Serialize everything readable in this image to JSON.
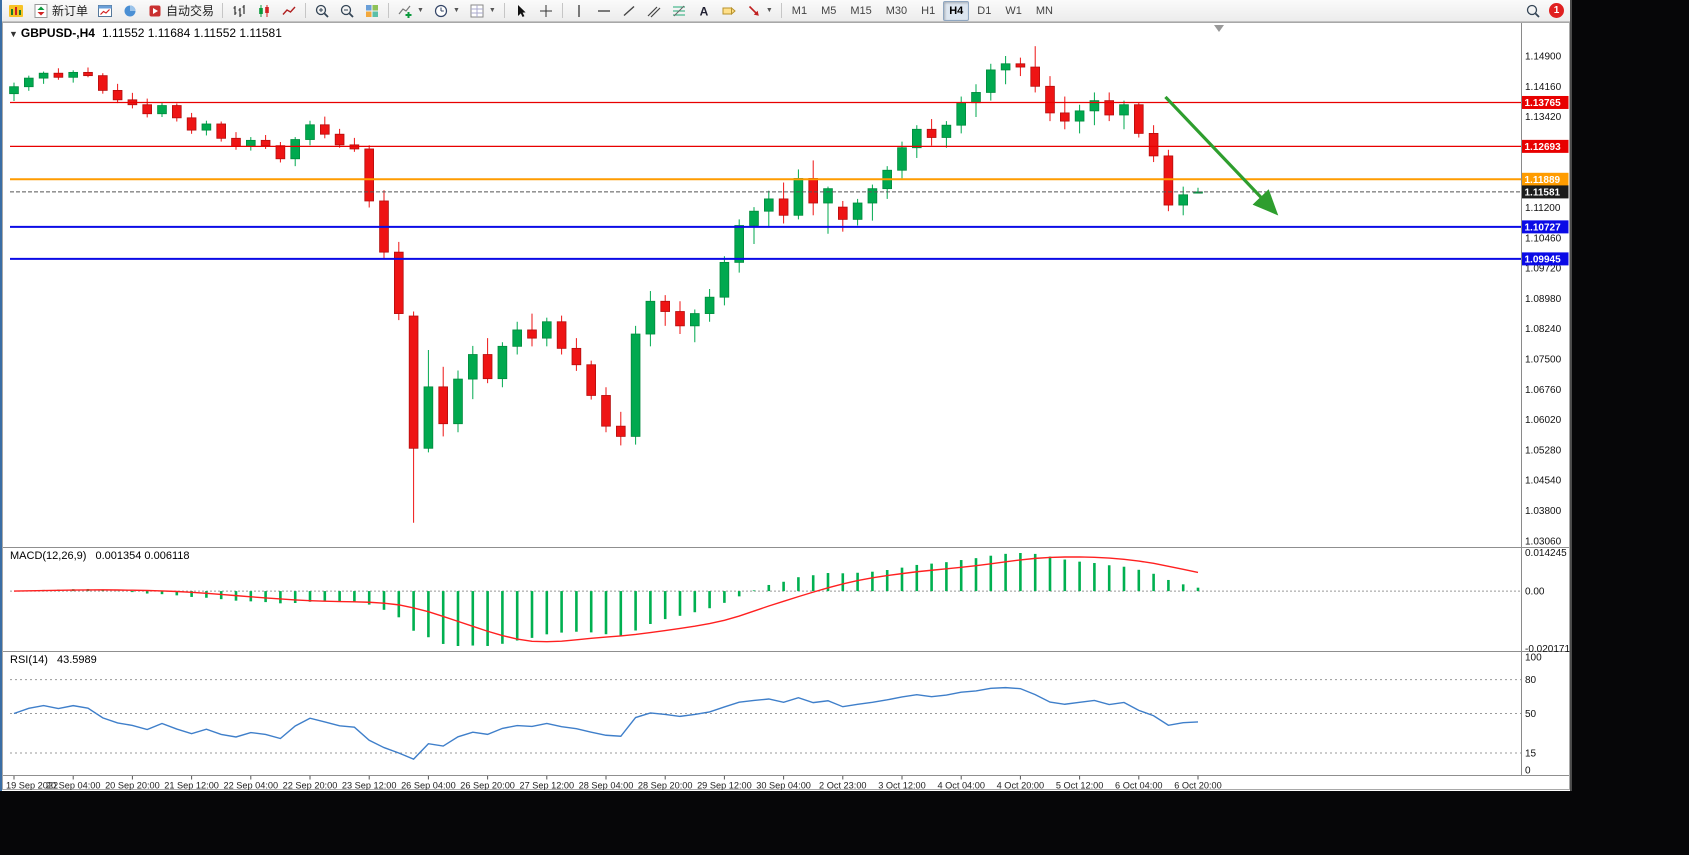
{
  "toolbar": {
    "new_order_label": "新订单",
    "autotrading_label": "自动交易",
    "notification_badge": "1",
    "icon_names": [
      "app-logo-icon",
      "new-order-icon",
      "new-chart-icon",
      "profiles-icon",
      "autotrading-icon",
      "bars-chart-icon",
      "candles-chart-icon",
      "line-chart-icon",
      "zoom-in-icon",
      "zoom-out-icon",
      "tile-windows-icon",
      "indicators-add-icon",
      "periods-clock-icon",
      "templates-icon",
      "cursor-icon",
      "crosshair-icon",
      "vertical-line-icon",
      "horizontal-line-icon",
      "trend-line-icon",
      "channel-icon",
      "fibonacci-icon",
      "text-icon",
      "text-label-icon",
      "arrows-icon",
      "search-icon"
    ],
    "timeframes": [
      {
        "label": "M1"
      },
      {
        "label": "M5"
      },
      {
        "label": "M15"
      },
      {
        "label": "M30"
      },
      {
        "label": "H1"
      },
      {
        "label": "H4",
        "active": true
      },
      {
        "label": "D1"
      },
      {
        "label": "W1"
      },
      {
        "label": "MN"
      }
    ]
  },
  "chart": {
    "one_click_glyph": "▼",
    "symbol_label": "GBPUSD-,H4",
    "ohlc_label": "1.11552 1.11684 1.11552 1.11581"
  },
  "chart_data": {
    "type": "candlestick",
    "symbol": "GBPUSD-",
    "period": "H4",
    "current_ohlc": {
      "open": "1.11552",
      "high": "1.11684",
      "low": "1.11552",
      "close": "1.11581"
    },
    "colors": {
      "bull": "#00A94F",
      "bull_stroke": "#008a3c",
      "bear": "#EE1414",
      "bear_stroke": "#b40d0d",
      "macd_hist": "#00B050",
      "macd_signal": "#FF2020",
      "rsi_line": "#3F7FCA",
      "arrow": "#2E9E2E",
      "hline_red": "#E80000",
      "hline_orange": "#FF9C00",
      "hline_blue": "#0B0BE6"
    },
    "y_axis_labels": [
      "1.14900",
      "1.14160",
      "1.13420",
      "1.12680",
      "1.11940",
      "1.11200",
      "1.10460",
      "1.09720",
      "1.08980",
      "1.08240",
      "1.07500",
      "1.06760",
      "1.06020",
      "1.05280",
      "1.04540",
      "1.03800",
      "1.03060"
    ],
    "price_anchor": {
      "price": 1.149,
      "step": 0.0074
    },
    "time_labels": [
      "19 Sep 2022",
      "20 Sep 04:00",
      "20 Sep 20:00",
      "21 Sep 12:00",
      "22 Sep 04:00",
      "22 Sep 20:00",
      "23 Sep 12:00",
      "26 Sep 04:00",
      "26 Sep 20:00",
      "27 Sep 12:00",
      "28 Sep 04:00",
      "28 Sep 20:00",
      "29 Sep 12:00",
      "30 Sep 04:00",
      "2 Oct 23:00",
      "3 Oct 12:00",
      "4 Oct 04:00",
      "4 Oct 20:00",
      "5 Oct 12:00",
      "6 Oct 04:00",
      "6 Oct 20:00"
    ],
    "time_label_step": 4,
    "candles": [
      [
        1.1398,
        1.1425,
        1.138,
        1.1415
      ],
      [
        1.1415,
        1.1442,
        1.1405,
        1.1436
      ],
      [
        1.1436,
        1.1452,
        1.1422,
        1.1448
      ],
      [
        1.1448,
        1.146,
        1.1432,
        1.1438
      ],
      [
        1.1438,
        1.1455,
        1.1425,
        1.145
      ],
      [
        1.145,
        1.1462,
        1.1438,
        1.1442
      ],
      [
        1.1442,
        1.1448,
        1.1398,
        1.1406
      ],
      [
        1.1406,
        1.1422,
        1.1375,
        1.1383
      ],
      [
        1.1383,
        1.14,
        1.1362,
        1.1371
      ],
      [
        1.1371,
        1.1386,
        1.134,
        1.1349
      ],
      [
        1.1349,
        1.1376,
        1.1341,
        1.1369
      ],
      [
        1.1369,
        1.1374,
        1.133,
        1.1339
      ],
      [
        1.1339,
        1.1351,
        1.13,
        1.1309
      ],
      [
        1.1309,
        1.1332,
        1.1296,
        1.1324
      ],
      [
        1.1324,
        1.133,
        1.1281,
        1.1289
      ],
      [
        1.1289,
        1.1304,
        1.1261,
        1.1269
      ],
      [
        1.1269,
        1.1292,
        1.1259,
        1.1284
      ],
      [
        1.1284,
        1.1297,
        1.1263,
        1.1271
      ],
      [
        1.1271,
        1.128,
        1.123,
        1.1239
      ],
      [
        1.1239,
        1.1292,
        1.1221,
        1.1286
      ],
      [
        1.1286,
        1.1332,
        1.1272,
        1.1322
      ],
      [
        1.1322,
        1.1342,
        1.1289,
        1.1299
      ],
      [
        1.1299,
        1.1312,
        1.1266,
        1.1273
      ],
      [
        1.1273,
        1.129,
        1.1256,
        1.1263
      ],
      [
        1.1263,
        1.1272,
        1.112,
        1.1136
      ],
      [
        1.1136,
        1.1162,
        1.0993,
        1.1011
      ],
      [
        1.1011,
        1.1036,
        1.0845,
        1.0861
      ],
      [
        1.0855,
        1.0866,
        1.035,
        1.0532
      ],
      [
        1.0532,
        1.0772,
        1.0522,
        1.0682
      ],
      [
        1.0682,
        1.0731,
        1.0561,
        1.0592
      ],
      [
        1.0592,
        1.0722,
        1.0571,
        1.0701
      ],
      [
        1.0701,
        1.0782,
        1.0652,
        1.0761
      ],
      [
        1.0761,
        1.0801,
        1.0691,
        1.0702
      ],
      [
        1.0702,
        1.0791,
        1.0681,
        1.0781
      ],
      [
        1.0781,
        1.0841,
        1.0761,
        1.0821
      ],
      [
        1.0821,
        1.0861,
        1.0781,
        1.0801
      ],
      [
        1.0801,
        1.0851,
        1.0781,
        1.0841
      ],
      [
        1.0841,
        1.0856,
        1.0761,
        1.0776
      ],
      [
        1.0776,
        1.0801,
        1.0721,
        1.0736
      ],
      [
        1.0736,
        1.0746,
        1.0651,
        1.0661
      ],
      [
        1.0661,
        1.0681,
        1.0571,
        1.0586
      ],
      [
        1.0586,
        1.0621,
        1.0539,
        1.0561
      ],
      [
        1.0561,
        1.0831,
        1.0541,
        1.0811
      ],
      [
        1.0811,
        1.0916,
        1.0781,
        1.0891
      ],
      [
        1.0891,
        1.0906,
        1.0831,
        1.0866
      ],
      [
        1.0866,
        1.0891,
        1.0811,
        1.0831
      ],
      [
        1.0831,
        1.0871,
        1.0791,
        1.0861
      ],
      [
        1.0861,
        1.0921,
        1.0841,
        1.0901
      ],
      [
        1.0901,
        1.1001,
        1.0881,
        1.0986
      ],
      [
        1.0986,
        1.1091,
        1.0961,
        1.1076
      ],
      [
        1.1076,
        1.1121,
        1.1031,
        1.1111
      ],
      [
        1.1111,
        1.1161,
        1.1071,
        1.1141
      ],
      [
        1.1141,
        1.1181,
        1.1081,
        1.1101
      ],
      [
        1.1101,
        1.1213,
        1.1091,
        1.1191
      ],
      [
        1.1191,
        1.1235,
        1.1101,
        1.1131
      ],
      [
        1.1131,
        1.1171,
        1.1056,
        1.1166
      ],
      [
        1.1121,
        1.1136,
        1.1061,
        1.1091
      ],
      [
        1.1091,
        1.1141,
        1.1076,
        1.1131
      ],
      [
        1.1131,
        1.1176,
        1.1088,
        1.1166
      ],
      [
        1.1166,
        1.1221,
        1.1141,
        1.1211
      ],
      [
        1.1211,
        1.1281,
        1.1191,
        1.1266
      ],
      [
        1.1266,
        1.1321,
        1.1241,
        1.1311
      ],
      [
        1.1311,
        1.1336,
        1.1271,
        1.1291
      ],
      [
        1.1291,
        1.1331,
        1.1266,
        1.1321
      ],
      [
        1.1321,
        1.1391,
        1.1301,
        1.1376
      ],
      [
        1.1376,
        1.1421,
        1.1341,
        1.1401
      ],
      [
        1.1401,
        1.1471,
        1.1381,
        1.1456
      ],
      [
        1.1456,
        1.149,
        1.1421,
        1.1471
      ],
      [
        1.1471,
        1.1486,
        1.1441,
        1.1463
      ],
      [
        1.1463,
        1.1514,
        1.1401,
        1.1416
      ],
      [
        1.1416,
        1.1441,
        1.1331,
        1.1351
      ],
      [
        1.1351,
        1.1391,
        1.1311,
        1.1331
      ],
      [
        1.1331,
        1.1371,
        1.1301,
        1.1356
      ],
      [
        1.1356,
        1.1401,
        1.1321,
        1.1381
      ],
      [
        1.1381,
        1.1401,
        1.1331,
        1.1346
      ],
      [
        1.1346,
        1.1381,
        1.1311,
        1.1371
      ],
      [
        1.1371,
        1.1377,
        1.1291,
        1.1301
      ],
      [
        1.1301,
        1.1321,
        1.1231,
        1.1246
      ],
      [
        1.1246,
        1.1261,
        1.1111,
        1.1126
      ],
      [
        1.1126,
        1.1171,
        1.1101,
        1.1151
      ],
      [
        1.11552,
        1.11684,
        1.11552,
        1.11581
      ]
    ],
    "hlines": [
      {
        "price": 1.13765,
        "label": "1.13765",
        "color": "#E80000",
        "width": 1.2
      },
      {
        "price": 1.12693,
        "label": "1.12693",
        "color": "#E80000",
        "width": 1.2
      },
      {
        "price": 1.11889,
        "label": "1.11889",
        "color": "#FF9C00",
        "width": 2
      },
      {
        "price": 1.10727,
        "label": "1.10727",
        "color": "#0B0BE6",
        "width": 2
      },
      {
        "price": 1.09945,
        "label": "1.09945",
        "color": "#0B0BE6",
        "width": 2
      }
    ],
    "current_price": {
      "price": 1.11581,
      "label": "1.11581",
      "line_color": "#555555",
      "badge_bg": "#1c1c1c"
    },
    "trend_arrow": {
      "from_bar": 77.8,
      "from_price": 1.139,
      "to_bar": 85.2,
      "to_price": 1.1109
    },
    "indicators": {
      "macd": {
        "name": "MACD(12,26,9)",
        "values": "0.001354 0.006118",
        "scale_labels": [
          "0.014245",
          "0.00",
          "-0.020171"
        ],
        "params": {
          "fast": 12,
          "slow": 26,
          "signal": 9
        }
      },
      "rsi": {
        "name": "RSI(14)",
        "value": "43.5989",
        "period": 14,
        "levels": [
          80,
          50,
          15
        ],
        "scale_labels": [
          "100",
          "80",
          "50",
          "15",
          "0"
        ]
      }
    }
  }
}
